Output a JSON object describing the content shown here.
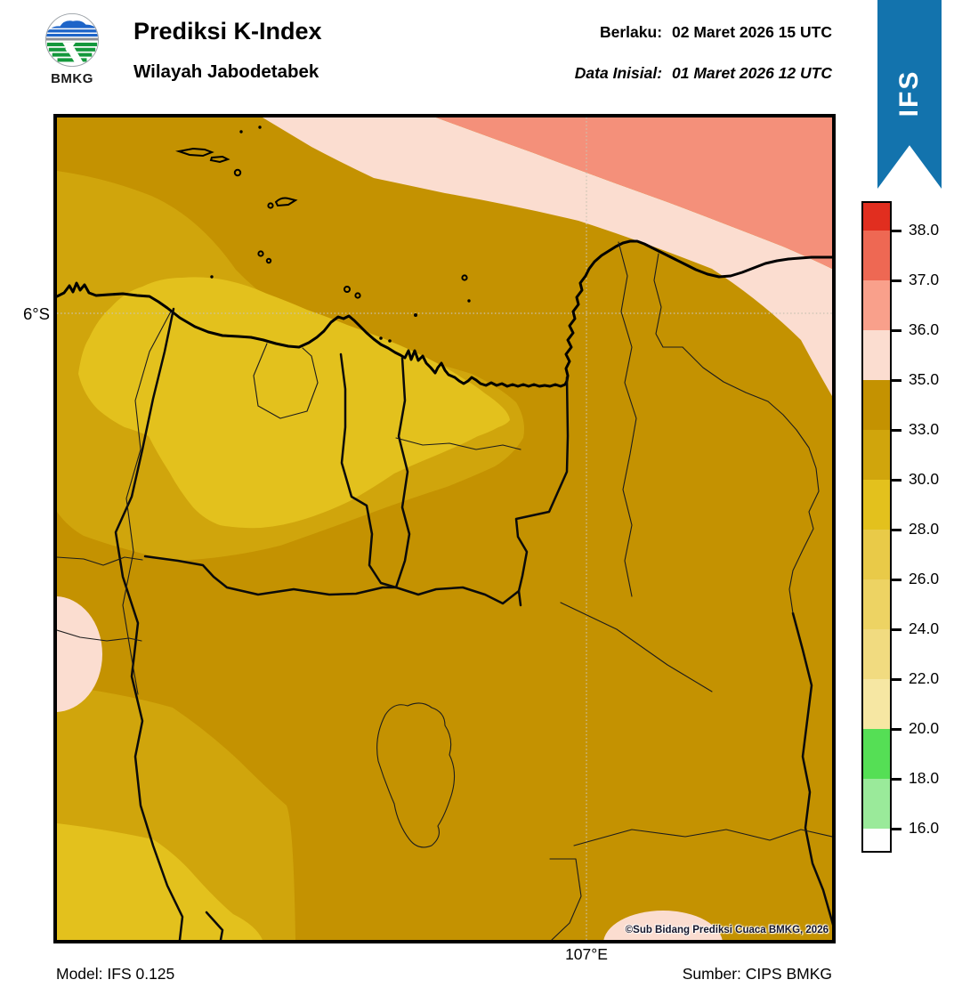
{
  "header": {
    "logo_text": "BMKG",
    "title": "Prediksi K-Index",
    "subtitle": "Wilayah Jabodetabek",
    "valid_label": "Berlaku:",
    "valid_value": "02 Maret 2026 15 UTC",
    "initial_label": "Data Inisial:",
    "initial_value": "01 Maret 2026 12 UTC",
    "ribbon_label": "IFS"
  },
  "map": {
    "lat_label": "6°S",
    "lon_label": "107°E",
    "copyright": "©Sub Bidang Prediksi Cuaca BMKG, 2026"
  },
  "legend": {
    "tick_labels": [
      "38.0",
      "37.0",
      "36.0",
      "35.0",
      "33.0",
      "30.0",
      "28.0",
      "26.0",
      "24.0",
      "22.0",
      "20.0",
      "18.0",
      "16.0"
    ],
    "segment_colors": [
      "#e12e1f",
      "#ee6853",
      "#f9a08b",
      "#fbddd0",
      "#c49201",
      "#d0a50c",
      "#e3c11d",
      "#e9ca48",
      "#edd363",
      "#f1db80",
      "#f6e7a3",
      "#55df55",
      "#9aea9a",
      "#fefefe"
    ]
  },
  "footer": {
    "model": "Model: IFS 0.125",
    "source": "Sumber: CIPS BMKG"
  },
  "palette": {
    "gold_33_35": "#c49201",
    "gold_30_33": "#d0a50c",
    "gold_28_30": "#e3c11d",
    "pink_35_36": "#fbddd0",
    "salmon_36_37": "#f4907a",
    "ribbon_blue": "#1373ad",
    "logo_blue": "#1d64c8",
    "logo_green": "#13983b",
    "grid_gray": "#c9c3b2"
  },
  "chart_data": {
    "type": "heatmap",
    "title": "Prediksi K-Index — Wilayah Jabodetabek",
    "legend_boundaries": [
      16.0,
      18.0,
      20.0,
      22.0,
      24.0,
      26.0,
      28.0,
      30.0,
      33.0,
      35.0,
      36.0,
      37.0,
      38.0
    ],
    "values_visible_on_map": [
      "28-30",
      "30-33",
      "33-35",
      "35-36",
      "36-37"
    ],
    "gridlines": {
      "lat": "6°S",
      "lon": "107°E"
    }
  }
}
